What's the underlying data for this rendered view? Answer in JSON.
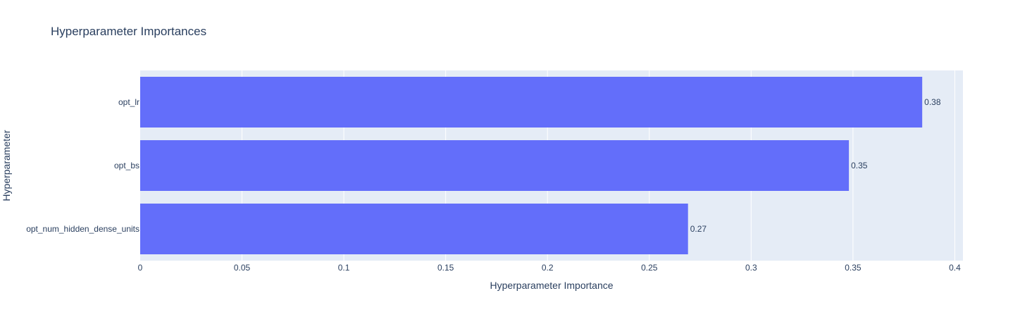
{
  "chart_data": {
    "type": "bar",
    "orientation": "horizontal",
    "title": "Hyperparameter Importances",
    "xlabel": "Hyperparameter Importance",
    "ylabel": "Hyperparameter",
    "categories": [
      "opt_num_hidden_dense_units",
      "opt_bs",
      "opt_lr"
    ],
    "values": [
      0.269,
      0.348,
      0.384
    ],
    "data_labels": [
      "0.27",
      "0.35",
      "0.38"
    ],
    "xlim": [
      0,
      0.404
    ],
    "xticks": [
      0,
      0.05,
      0.1,
      0.15,
      0.2,
      0.25,
      0.3,
      0.35,
      0.4
    ],
    "xtick_labels": [
      "0",
      "0.05",
      "0.1",
      "0.15",
      "0.2",
      "0.25",
      "0.3",
      "0.35",
      "0.4"
    ],
    "grid": true,
    "colors": {
      "bar": "#636efa",
      "plot_background": "#e5ecf6",
      "grid": "#ffffff",
      "text": "#2a3f5f"
    }
  }
}
